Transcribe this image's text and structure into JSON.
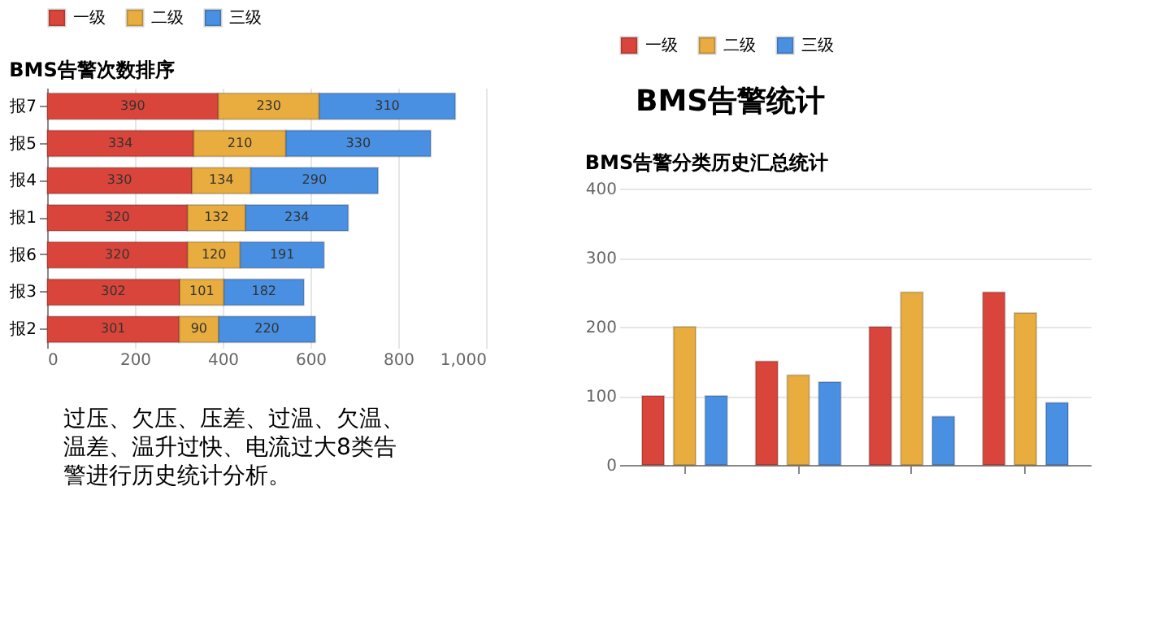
{
  "chart_data": [
    {
      "type": "bar",
      "title": "BMS告警次数排序",
      "orientation": "horizontal",
      "stacked": true,
      "categories": [
        "报7",
        "报5",
        "报4",
        "报1",
        "报6",
        "报3",
        "报2"
      ],
      "series": [
        {
          "name": "一级",
          "color": "#d9453a",
          "values": [
            390,
            334,
            330,
            320,
            320,
            302,
            301
          ]
        },
        {
          "name": "二级",
          "color": "#e8ad3e",
          "values": [
            230,
            210,
            134,
            132,
            120,
            101,
            90
          ]
        },
        {
          "name": "三级",
          "color": "#4a90e2",
          "values": [
            310,
            330,
            290,
            234,
            191,
            182,
            220
          ]
        }
      ],
      "xlim": [
        0,
        1000
      ],
      "xticks": [
        0,
        200,
        400,
        600,
        800,
        {
          "value": 1000,
          "label": "1,000"
        }
      ],
      "grid": "x",
      "legend": "top",
      "data_labels": true,
      "annotations": [
        "过压、欠压、压差、过温、欠温、温差、温升过快、电流过大8类告警进行历史统计分析。"
      ]
    },
    {
      "type": "bar",
      "title": "BMS告警分类历史汇总统计",
      "categories": [
        null,
        null,
        null,
        null
      ],
      "series": [
        {
          "name": "一级",
          "color": "#d9453a",
          "values": [
            100,
            150,
            200,
            250
          ]
        },
        {
          "name": "二级",
          "color": "#e8ad3e",
          "values": [
            200,
            130,
            250,
            220
          ]
        },
        {
          "name": "三级",
          "color": "#4a90e2",
          "values": [
            100,
            120,
            70,
            90
          ]
        }
      ],
      "ylim": [
        0,
        400
      ],
      "yticks": [
        0,
        100,
        200,
        300,
        400
      ],
      "grid": "y",
      "legend": "top",
      "annotations": [
        "BMS告警统计"
      ]
    }
  ]
}
